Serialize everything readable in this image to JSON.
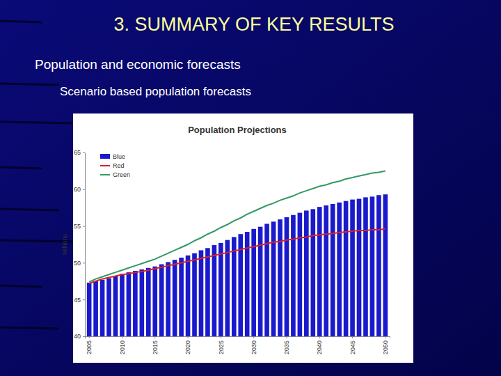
{
  "page": {
    "title": "3. SUMMARY OF KEY RESULTS",
    "heading": "Population and economic forecasts",
    "subheading": "Scenario based population forecasts"
  },
  "chart_data": {
    "type": "bar",
    "title": "Population Projections",
    "y_label": "Millions",
    "categories": [
      "2005",
      null,
      null,
      null,
      null,
      "2010",
      null,
      null,
      null,
      null,
      "2015",
      null,
      null,
      null,
      null,
      "2020",
      null,
      null,
      null,
      null,
      "2025",
      null,
      null,
      null,
      null,
      "2030",
      null,
      null,
      null,
      null,
      "2035",
      null,
      null,
      null,
      null,
      "2040",
      null,
      null,
      null,
      null,
      "2045",
      null,
      null,
      null,
      null,
      "2050"
    ],
    "series": [
      {
        "name": "Blue",
        "type": "bar",
        "color": "#1a1acc",
        "values": [
          47.3,
          47.5,
          47.7,
          47.9,
          48.2,
          48.5,
          48.7,
          48.9,
          49.1,
          49.3,
          49.5,
          49.8,
          50.1,
          50.4,
          50.7,
          51.0,
          51.3,
          51.7,
          52.0,
          52.4,
          52.7,
          53.1,
          53.5,
          53.9,
          54.2,
          54.6,
          54.9,
          55.3,
          55.6,
          55.9,
          56.2,
          56.5,
          56.8,
          57.1,
          57.3,
          57.6,
          57.8,
          58.0,
          58.2,
          58.4,
          58.6,
          58.7,
          58.9,
          59.0,
          59.2,
          59.3
        ]
      },
      {
        "name": "Red",
        "type": "line",
        "color": "#dd2222",
        "values": [
          47.2,
          47.5,
          47.8,
          48.0,
          48.2,
          48.4,
          48.5,
          48.7,
          48.8,
          49.0,
          49.2,
          49.4,
          49.6,
          49.8,
          50.0,
          50.2,
          50.4,
          50.6,
          50.8,
          51.0,
          51.2,
          51.4,
          51.6,
          51.8,
          52.0,
          52.2,
          52.4,
          52.6,
          52.8,
          52.9,
          53.1,
          53.2,
          53.4,
          53.5,
          53.7,
          53.8,
          53.9,
          54.0,
          54.1,
          54.2,
          54.3,
          54.4,
          54.4,
          54.5,
          54.5,
          54.6
        ]
      },
      {
        "name": "Green",
        "type": "line",
        "color": "#339966",
        "values": [
          47.4,
          47.8,
          48.1,
          48.4,
          48.7,
          49.0,
          49.3,
          49.6,
          49.9,
          50.2,
          50.5,
          50.9,
          51.3,
          51.7,
          52.1,
          52.5,
          53.0,
          53.4,
          53.9,
          54.3,
          54.8,
          55.2,
          55.7,
          56.1,
          56.6,
          57.0,
          57.4,
          57.8,
          58.1,
          58.5,
          58.8,
          59.1,
          59.5,
          59.8,
          60.1,
          60.4,
          60.6,
          60.9,
          61.1,
          61.4,
          61.6,
          61.8,
          62.0,
          62.2,
          62.3,
          62.5
        ]
      }
    ],
    "ylim": [
      40,
      65
    ],
    "yticks": [
      40,
      45,
      50,
      55,
      60,
      65
    ],
    "legend": "upper left"
  }
}
